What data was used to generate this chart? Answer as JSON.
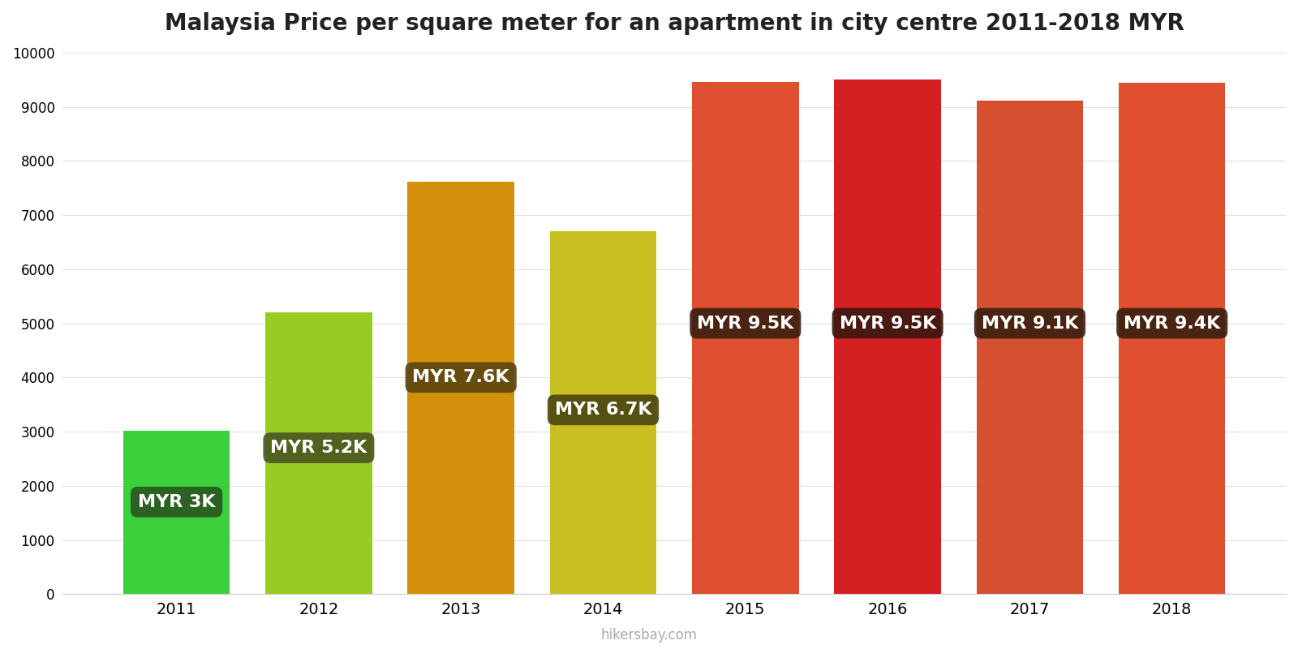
{
  "title": "Malaysia Price per square meter for an apartment in city centre 2011-2018 MYR",
  "years": [
    2011,
    2012,
    2013,
    2014,
    2015,
    2016,
    2017,
    2018
  ],
  "values": [
    3020,
    5200,
    7620,
    6700,
    9460,
    9500,
    9120,
    9440
  ],
  "bar_colors": [
    "#3cd13c",
    "#99cc22",
    "#d4900a",
    "#c8c020",
    "#e05030",
    "#d42020",
    "#d45030",
    "#e05030"
  ],
  "labels": [
    "MYR 3K",
    "MYR 5.2K",
    "MYR 7.6K",
    "MYR 6.7K",
    "MYR 9.5K",
    "MYR 9.5K",
    "MYR 9.1K",
    "MYR 9.4K"
  ],
  "label_bg_colors": [
    "#2a5520",
    "#4a5520",
    "#5a4510",
    "#4a4510",
    "#3a2010",
    "#3a1810",
    "#3a2010",
    "#3a2010"
  ],
  "label_y_positions": [
    1700,
    2700,
    4000,
    3400,
    5000,
    5000,
    5000,
    5000
  ],
  "ylim": [
    0,
    10000
  ],
  "yticks": [
    0,
    1000,
    2000,
    3000,
    4000,
    5000,
    6000,
    7000,
    8000,
    9000,
    10000
  ],
  "watermark": "hikersbay.com",
  "background_color": "#ffffff",
  "title_fontsize": 20,
  "label_fontsize": 16,
  "bar_width": 0.75
}
